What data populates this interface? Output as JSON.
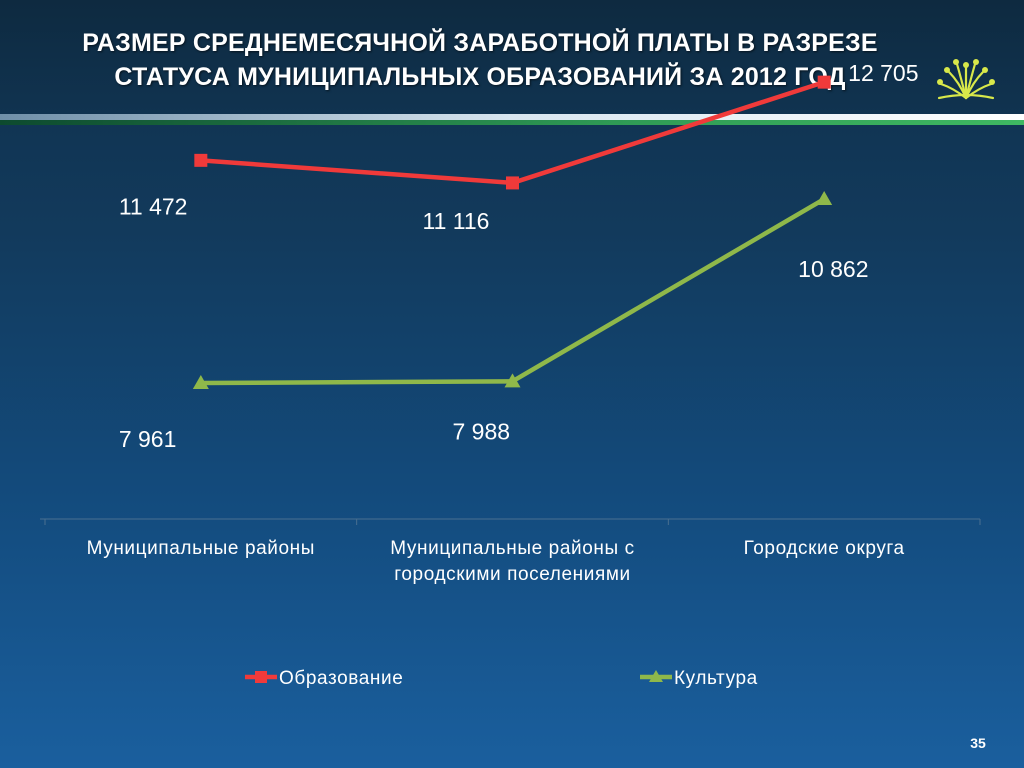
{
  "slide": {
    "title_line1": "РАЗМЕР СРЕДНЕМЕСЯЧНОЙ ЗАРАБОТНОЙ ПЛАТЫ В РАЗРЕЗЕ",
    "title_line2": "СТАТУСА МУНИЦИПАЛЬНЫХ ОБРАЗОВАНИЙ ЗА 2012 ГОД",
    "page_number": "35",
    "logo_icon": "kurai-flower-emblem-icon"
  },
  "colors": {
    "education": "#f03a3a",
    "culture": "#8fb84a",
    "text": "#ffffff",
    "axis": "#4a6f90"
  },
  "chart_data": {
    "type": "line",
    "title": "",
    "xlabel": "",
    "ylabel": "",
    "categories": [
      [
        "Муниципальные районы"
      ],
      [
        "Муниципальные районы с",
        "городскими поселениями"
      ],
      [
        "Городские округа"
      ]
    ],
    "series": [
      {
        "name": "Образование",
        "values": [
          11472,
          11116,
          12705
        ],
        "labels": [
          "11 472",
          "11 116",
          "12 705"
        ],
        "marker": "square",
        "color": "#f03a3a"
      },
      {
        "name": "Культура",
        "values": [
          7961,
          7988,
          10862
        ],
        "labels": [
          "7 961",
          "7 988",
          "10 862"
        ],
        "marker": "triangle",
        "color": "#8fb84a"
      }
    ],
    "ylim": [
      0,
      14000
    ],
    "grid": false,
    "legend_position": "bottom"
  }
}
